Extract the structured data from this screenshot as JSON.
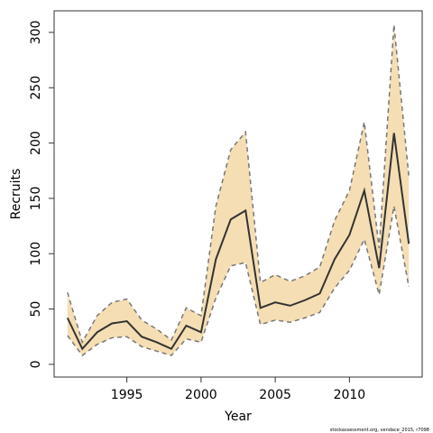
{
  "chart_data": {
    "type": "line",
    "x_label": "Year",
    "y_label": "Recruits",
    "footnote": "stockassessment.org, vendace_2015, r7098",
    "x": [
      1991,
      1992,
      1993,
      1994,
      1995,
      1996,
      1997,
      1998,
      1999,
      2000,
      2001,
      2002,
      2003,
      2004,
      2005,
      2006,
      2007,
      2008,
      2009,
      2010,
      2011,
      2012,
      2013,
      2014
    ],
    "values": [
      42,
      14,
      29,
      37,
      39,
      25,
      20,
      14,
      35,
      29,
      95,
      131,
      139,
      51,
      56,
      53,
      58,
      64,
      95,
      117,
      157,
      87,
      209,
      109
    ],
    "upper": [
      65,
      20,
      44,
      56,
      59,
      40,
      32,
      22,
      51,
      44,
      143,
      194,
      210,
      74,
      81,
      75,
      80,
      88,
      130,
      157,
      219,
      105,
      307,
      170
    ],
    "lower": [
      26,
      8,
      18,
      24,
      25,
      16,
      12,
      8,
      23,
      20,
      60,
      89,
      92,
      36,
      40,
      38,
      42,
      47,
      69,
      85,
      113,
      63,
      143,
      70
    ],
    "color": "#333333",
    "band_color": "#f5deb3",
    "bound_color": "#777777",
    "xlim": [
      1990.1,
      2014.9
    ],
    "xticks": [
      1995,
      2000,
      2005,
      2010
    ],
    "ylim": [
      -11.5,
      319.5
    ],
    "yticks": [
      0,
      50,
      100,
      150,
      200,
      250,
      300
    ]
  }
}
